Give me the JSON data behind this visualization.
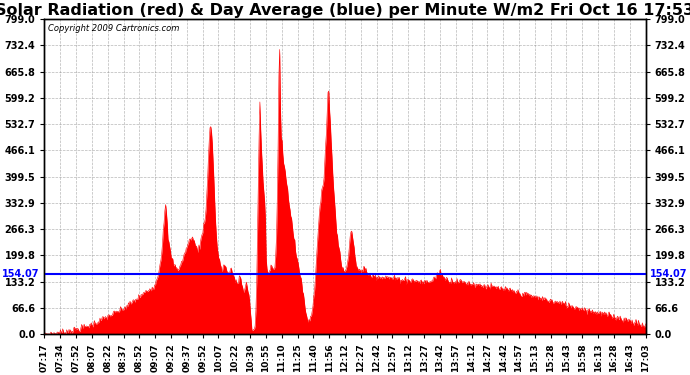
{
  "title": "Solar Radiation (red) & Day Average (blue) per Minute W/m2 Fri Oct 16 17:53",
  "copyright": "Copyright 2009 Cartronics.com",
  "avg_line": 154.07,
  "ylim": [
    0.0,
    799.0
  ],
  "yticks": [
    0.0,
    66.6,
    133.2,
    199.8,
    266.3,
    332.9,
    399.5,
    466.1,
    532.7,
    599.2,
    665.8,
    732.4,
    799.0
  ],
  "avg_label": "154.07",
  "fill_color": "#ff0000",
  "line_color": "#0000ff",
  "bg_color": "#ffffff",
  "grid_color": "#888888",
  "title_fontsize": 11.5,
  "xtick_labels": [
    "07:17",
    "07:34",
    "07:52",
    "08:07",
    "08:22",
    "08:37",
    "08:52",
    "09:07",
    "09:22",
    "09:37",
    "09:52",
    "10:07",
    "10:22",
    "10:39",
    "10:55",
    "11:10",
    "11:25",
    "11:40",
    "11:56",
    "12:12",
    "12:27",
    "12:42",
    "12:57",
    "13:12",
    "13:27",
    "13:42",
    "13:57",
    "14:12",
    "14:27",
    "14:42",
    "14:57",
    "15:13",
    "15:28",
    "15:43",
    "15:58",
    "16:13",
    "16:28",
    "16:43",
    "17:03"
  ]
}
